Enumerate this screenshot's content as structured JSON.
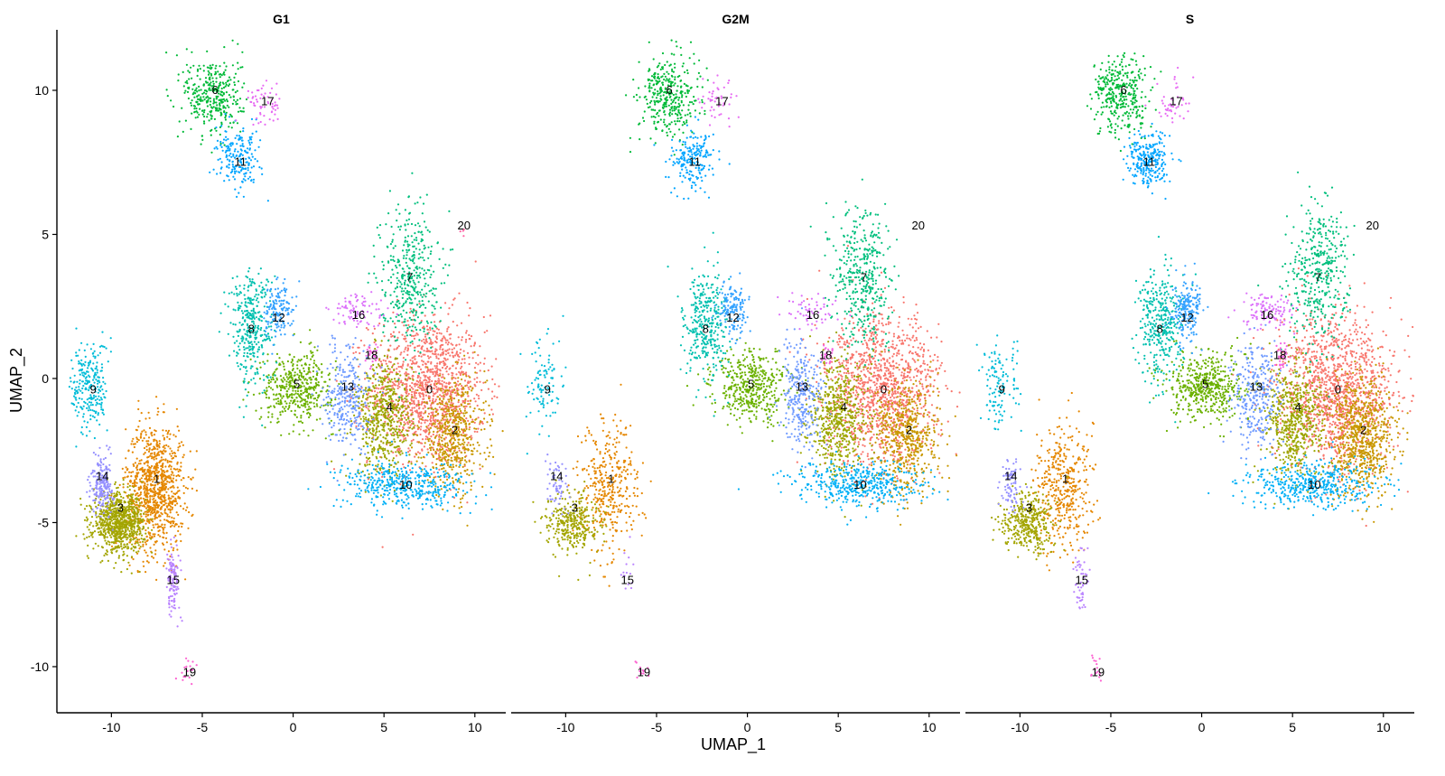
{
  "chart_data": {
    "type": "scatter",
    "xlabel": "UMAP_1",
    "ylabel": "UMAP_2",
    "xlim": [
      -13,
      11.7
    ],
    "ylim": [
      -11.6,
      12.1
    ],
    "x_ticks": [
      -10,
      -5,
      0,
      5,
      10
    ],
    "y_ticks": [
      10,
      5,
      0,
      -5,
      -10
    ],
    "x_tick_labels": [
      "-10",
      "-5",
      "0",
      "5",
      "10"
    ],
    "y_tick_labels": [
      "10",
      "5",
      "0",
      "-5",
      "-10"
    ],
    "panels": [
      "G1",
      "G2M",
      "S"
    ],
    "clusters": [
      {
        "id": "0",
        "color": "#F8766D",
        "cx": 7.4,
        "cy": -0.4,
        "sx": 1.6,
        "sy": 1.3,
        "n": [
          1300,
          1200,
          1300
        ]
      },
      {
        "id": "1",
        "color": "#E58700",
        "cx": -7.6,
        "cy": -3.8,
        "sx": 0.8,
        "sy": 1.1,
        "n": [
          950,
          380,
          420
        ]
      },
      {
        "id": "2",
        "color": "#C99800",
        "cx": 8.8,
        "cy": -2.0,
        "sx": 0.9,
        "sy": 1.0,
        "n": [
          550,
          550,
          750
        ]
      },
      {
        "id": "3",
        "color": "#A3A500",
        "cx": -9.6,
        "cy": -5.0,
        "sx": 0.7,
        "sy": 0.5,
        "n": [
          850,
          320,
          380
        ]
      },
      {
        "id": "4",
        "color": "#9CA700",
        "cx": 5.0,
        "cy": -1.4,
        "sx": 0.8,
        "sy": 1.0,
        "n": [
          550,
          550,
          550
        ]
      },
      {
        "id": "5",
        "color": "#6BB100",
        "cx": 0.2,
        "cy": -0.3,
        "sx": 1.0,
        "sy": 0.6,
        "n": [
          450,
          450,
          500
        ]
      },
      {
        "id": "6",
        "color": "#00BA38",
        "cx": -4.4,
        "cy": 9.8,
        "sx": 0.8,
        "sy": 0.7,
        "n": [
          350,
          350,
          350
        ]
      },
      {
        "id": "7",
        "color": "#00BF7D",
        "cx": 6.4,
        "cy": 3.6,
        "sx": 0.8,
        "sy": 1.2,
        "n": [
          400,
          400,
          400
        ]
      },
      {
        "id": "8",
        "color": "#00C0AF",
        "cx": -2.3,
        "cy": 1.8,
        "sx": 0.6,
        "sy": 1.0,
        "n": [
          350,
          350,
          350
        ]
      },
      {
        "id": "9",
        "color": "#00BCD8",
        "cx": -11.2,
        "cy": -0.3,
        "sx": 0.5,
        "sy": 0.8,
        "n": [
          250,
          100,
          120
        ]
      },
      {
        "id": "10",
        "color": "#00B0F6",
        "cx": 6.2,
        "cy": -3.7,
        "sx": 1.8,
        "sy": 0.4,
        "n": [
          450,
          450,
          450
        ]
      },
      {
        "id": "11",
        "color": "#00A5FF",
        "cx": -3.0,
        "cy": 7.6,
        "sx": 0.6,
        "sy": 0.5,
        "n": [
          200,
          200,
          250
        ]
      },
      {
        "id": "12",
        "color": "#35A2FF",
        "cx": -0.8,
        "cy": 2.4,
        "sx": 0.4,
        "sy": 0.5,
        "n": [
          150,
          150,
          200
        ]
      },
      {
        "id": "13",
        "color": "#6E9AFF",
        "cx": 3.0,
        "cy": -0.6,
        "sx": 0.6,
        "sy": 0.9,
        "n": [
          300,
          300,
          300
        ]
      },
      {
        "id": "14",
        "color": "#9590FF",
        "cx": -10.5,
        "cy": -3.7,
        "sx": 0.3,
        "sy": 0.5,
        "n": [
          200,
          60,
          80
        ]
      },
      {
        "id": "15",
        "color": "#B983FF",
        "cx": -6.6,
        "cy": -6.9,
        "sx": 0.2,
        "sy": 0.6,
        "n": [
          120,
          15,
          50
        ]
      },
      {
        "id": "16",
        "color": "#DC71FA",
        "cx": 3.6,
        "cy": 2.3,
        "sx": 0.8,
        "sy": 0.3,
        "n": [
          90,
          60,
          120
        ]
      },
      {
        "id": "17",
        "color": "#E76BF3",
        "cx": -1.6,
        "cy": 9.6,
        "sx": 0.5,
        "sy": 0.4,
        "n": [
          60,
          45,
          45
        ]
      },
      {
        "id": "18",
        "color": "#F564E3",
        "cx": 4.4,
        "cy": 0.8,
        "sx": 0.2,
        "sy": 0.2,
        "n": [
          25,
          25,
          30
        ]
      },
      {
        "id": "19",
        "color": "#FD61D1",
        "cx": -5.8,
        "cy": -10.1,
        "sx": 0.2,
        "sy": 0.2,
        "n": [
          18,
          12,
          15
        ]
      },
      {
        "id": "20",
        "color": "#FF67A4",
        "cx": 9.3,
        "cy": 5.2,
        "sx": 0.1,
        "sy": 0.1,
        "n": [
          4,
          0,
          0
        ]
      }
    ],
    "cluster_labels": [
      {
        "id": "0",
        "x": 7.5,
        "y": -0.4
      },
      {
        "id": "1",
        "x": -7.5,
        "y": -3.5
      },
      {
        "id": "2",
        "x": 8.9,
        "y": -1.8
      },
      {
        "id": "3",
        "x": -9.5,
        "y": -4.5
      },
      {
        "id": "4",
        "x": 5.3,
        "y": -1.0
      },
      {
        "id": "5",
        "x": 0.2,
        "y": -0.2
      },
      {
        "id": "6",
        "x": -4.3,
        "y": 10.0
      },
      {
        "id": "7",
        "x": 6.4,
        "y": 3.5
      },
      {
        "id": "8",
        "x": -2.3,
        "y": 1.7
      },
      {
        "id": "9",
        "x": -11.0,
        "y": -0.4
      },
      {
        "id": "10",
        "x": 6.2,
        "y": -3.7
      },
      {
        "id": "11",
        "x": -2.9,
        "y": 7.5
      },
      {
        "id": "12",
        "x": -0.8,
        "y": 2.1
      },
      {
        "id": "13",
        "x": 3.0,
        "y": -0.3
      },
      {
        "id": "14",
        "x": -10.5,
        "y": -3.4
      },
      {
        "id": "15",
        "x": -6.6,
        "y": -7.0
      },
      {
        "id": "16",
        "x": 3.6,
        "y": 2.2
      },
      {
        "id": "17",
        "x": -1.4,
        "y": 9.6
      },
      {
        "id": "18",
        "x": 4.3,
        "y": 0.8
      },
      {
        "id": "19",
        "x": -5.7,
        "y": -10.2
      },
      {
        "id": "20",
        "x": 9.4,
        "y": 5.3
      }
    ]
  }
}
